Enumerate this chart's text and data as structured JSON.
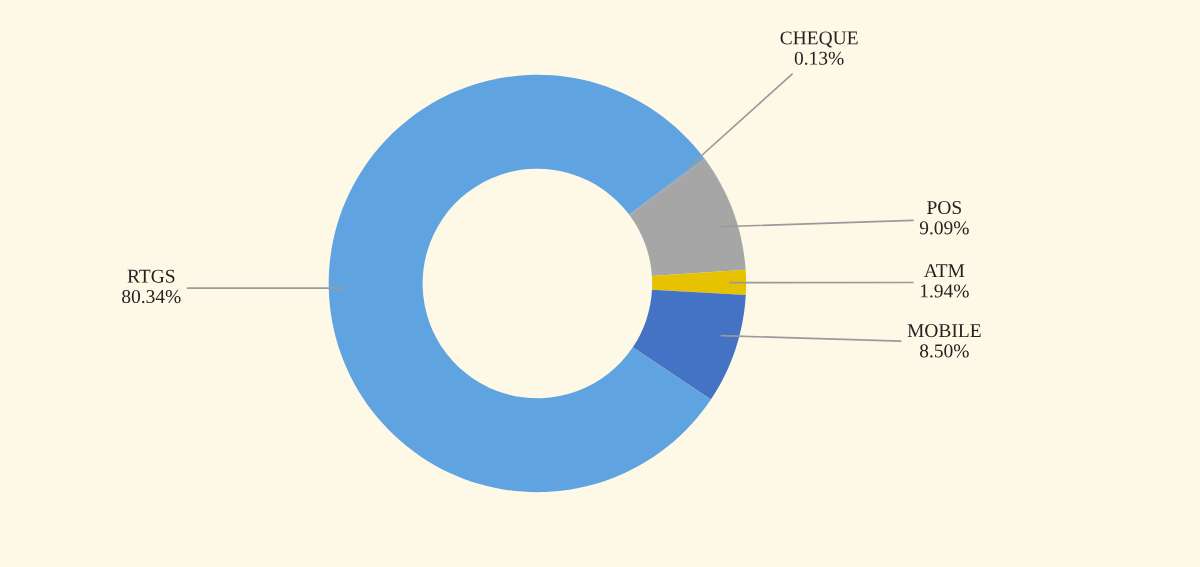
{
  "chart_data": {
    "type": "donut",
    "categories": [
      "CHEQUE",
      "POS",
      "ATM",
      "MOBILE",
      "RTGS"
    ],
    "values": [
      0.13,
      9.09,
      1.94,
      8.5,
      80.34
    ],
    "colors": [
      "#8e9aae",
      "#a6a6a6",
      "#e6c200",
      "#4472c4",
      "#5fa3e0"
    ],
    "value_labels": [
      "0.13%",
      "9.09%",
      "1.94%",
      "8.50%",
      "80.34%"
    ],
    "legend": false
  }
}
